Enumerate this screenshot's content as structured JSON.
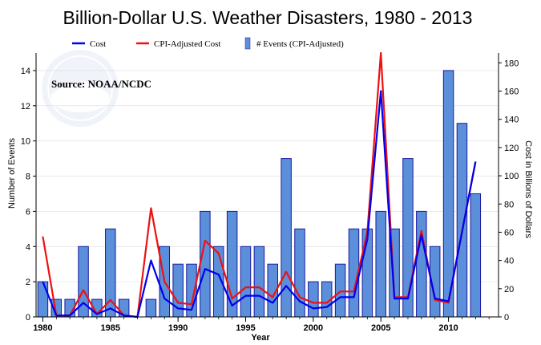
{
  "chart_data": {
    "type": "bar",
    "title": "Billion-Dollar U.S. Weather Disasters, 1980 - 2013",
    "source": "Source:  NOAA/NCDC",
    "xlabel": "Year",
    "ylabel_left": "Number of Events",
    "ylabel_right": "Cost in Billions of Dollars",
    "x_ticks": [
      1980,
      1985,
      1990,
      1995,
      2000,
      2005,
      2010
    ],
    "y_left_ticks": [
      0,
      2,
      4,
      6,
      8,
      10,
      12,
      14
    ],
    "y_right_ticks": [
      0,
      20,
      40,
      60,
      80,
      100,
      120,
      140,
      160,
      180
    ],
    "y_left_lim": [
      0,
      15
    ],
    "y_right_lim": [
      0,
      187
    ],
    "x_lim": [
      1979.5,
      2013.7
    ],
    "legend": [
      "Cost",
      "CPI-Adjusted Cost",
      "# Events (CPI-Adjusted)"
    ],
    "colors": {
      "cost": "#0000ee",
      "cpi": "#ee1111",
      "bar_fill": "#5b8fd9",
      "bar_stroke": "#1a1aa0"
    },
    "years": [
      1980,
      1981,
      1982,
      1983,
      1984,
      1985,
      1986,
      1987,
      1988,
      1989,
      1990,
      1991,
      1992,
      1993,
      1994,
      1995,
      1996,
      1997,
      1998,
      1999,
      2000,
      2001,
      2002,
      2003,
      2004,
      2005,
      2006,
      2007,
      2008,
      2009,
      2010,
      2011,
      2012,
      2013
    ],
    "series": [
      {
        "name": "# Events (CPI-Adjusted)",
        "axis": "left",
        "kind": "bar",
        "values": [
          2,
          1,
          1,
          4,
          1,
          5,
          1,
          0,
          1,
          4,
          3,
          3,
          6,
          4,
          6,
          4,
          4,
          3,
          9,
          5,
          2,
          2,
          3,
          5,
          5,
          6,
          5,
          9,
          6,
          4,
          14,
          11,
          7,
          0
        ]
      },
      {
        "name": "Cost",
        "axis": "right",
        "kind": "line",
        "values": [
          25,
          1,
          1,
          10,
          2,
          6,
          1,
          0,
          40,
          13,
          6,
          5,
          34,
          30,
          8,
          15,
          15,
          10,
          22,
          11,
          6,
          7,
          14,
          14,
          55,
          160,
          13,
          13,
          58,
          13,
          11,
          60,
          110,
          null
        ]
      },
      {
        "name": "CPI-Adjusted Cost",
        "axis": "right",
        "kind": "line",
        "values": [
          57,
          1,
          1,
          19,
          2,
          12,
          1,
          0,
          77,
          25,
          10,
          9,
          54,
          45,
          13,
          21,
          21,
          14,
          32,
          14,
          10,
          10,
          18,
          18,
          60,
          187,
          14,
          14,
          61,
          12,
          10,
          60,
          110,
          null
        ]
      }
    ]
  }
}
